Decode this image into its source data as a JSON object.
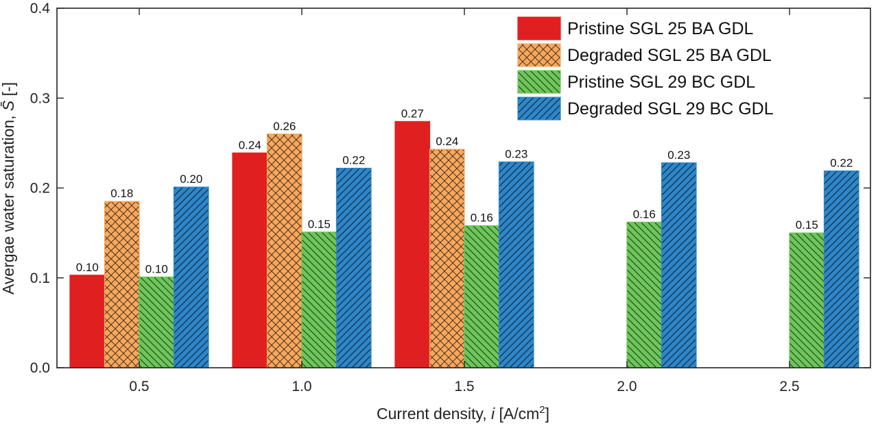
{
  "chart_data": {
    "type": "bar",
    "title": "",
    "xlabel": "Current density, i [A/cm2]",
    "xlabel_parts": {
      "prefix": "Current density, ",
      "var": "i",
      "unit_open": " [A/cm",
      "sup": "2",
      "unit_close": "]"
    },
    "ylabel": "Avergae water saturation, S̄ [-]",
    "ylabel_parts": {
      "text": "Avergae water saturation, ",
      "var": "S̄",
      "unit": " [-]"
    },
    "categories": [
      "0.5",
      "1.0",
      "1.5",
      "2.0",
      "2.5"
    ],
    "ylim": [
      0,
      0.4
    ],
    "yticks": [
      "0.0",
      "0.1",
      "0.2",
      "0.3",
      "0.4"
    ],
    "legend_position": "top-right",
    "series": [
      {
        "name": "Pristine SGL 25 BA GDL",
        "color": "#e02020",
        "pattern": "solid",
        "values": [
          0.103,
          0.239,
          0.274,
          null,
          null
        ],
        "labels": [
          "0.10",
          "0.24",
          "0.27",
          null,
          null
        ]
      },
      {
        "name": "Degraded SGL 25 BA GDL",
        "color": "#f7a85c",
        "pattern": "crosshatch",
        "values": [
          0.185,
          0.26,
          0.243,
          null,
          null
        ],
        "labels": [
          "0.18",
          "0.26",
          "0.24",
          null,
          null
        ]
      },
      {
        "name": "Pristine SGL 29 BC GDL",
        "color": "#6dc65a",
        "pattern": "backslash",
        "values": [
          0.101,
          0.151,
          0.158,
          0.162,
          0.15
        ],
        "labels": [
          "0.10",
          "0.15",
          "0.16",
          "0.16",
          "0.15"
        ]
      },
      {
        "name": "Degraded SGL 29 BC GDL",
        "color": "#2e86c8",
        "pattern": "slash",
        "values": [
          0.201,
          0.222,
          0.229,
          0.228,
          0.219
        ],
        "labels": [
          "0.20",
          "0.22",
          "0.23",
          "0.23",
          "0.22"
        ]
      }
    ]
  }
}
